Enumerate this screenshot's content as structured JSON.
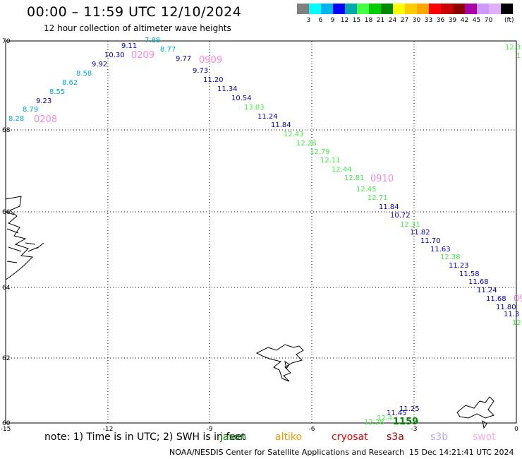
{
  "header": {
    "title": "00:00 – 11:59 UTC 12/10/2024",
    "subtitle": "12 hour collection of altimeter wave heights"
  },
  "legend": {
    "colors": [
      "#808080",
      "#00ffff",
      "#00b4f0",
      "#0000ff",
      "#00aaaa",
      "#44ff44",
      "#00cc00",
      "#008800",
      "#ffff00",
      "#ffcc00",
      "#ffa500",
      "#ff0000",
      "#cc0000",
      "#8b0000",
      "#aa00aa",
      "#cc99ff",
      "#e0b0ff",
      "#000000"
    ],
    "labels": [
      "3",
      "6",
      "9",
      "12",
      "15",
      "18",
      "21",
      "24",
      "27",
      "30",
      "33",
      "36",
      "39",
      "42",
      "45",
      "70"
    ],
    "unit": "(ft)"
  },
  "axes": {
    "lat_labels": [
      "70",
      "68",
      "66",
      "64",
      "62",
      "60"
    ],
    "lon_labels": [
      "-15",
      "-12",
      "-9",
      "-6",
      "-3",
      "0"
    ]
  },
  "passes": [
    {
      "time": "0208",
      "color": "#ff88dd"
    },
    {
      "time": "0209",
      "color": "#ff88dd"
    },
    {
      "time": "0909",
      "color": "#ff88dd"
    },
    {
      "time": "0910",
      "color": "#ff88dd"
    },
    {
      "time": "1159",
      "color": "#008800"
    },
    {
      "time": "09",
      "color": "#ff88dd"
    }
  ],
  "readings": [
    {
      "v": "8.28",
      "c": "#00aadd"
    },
    {
      "v": "8.79",
      "c": "#00aadd"
    },
    {
      "v": "9.23",
      "c": "#0000cc"
    },
    {
      "v": "8.55",
      "c": "#00aadd"
    },
    {
      "v": "8.62",
      "c": "#00aadd"
    },
    {
      "v": "8.58",
      "c": "#00aadd"
    },
    {
      "v": "9.92",
      "c": "#0000cc"
    },
    {
      "v": "10.30",
      "c": "#0000cc"
    },
    {
      "v": "9.11",
      "c": "#0000cc"
    },
    {
      "v": "7.88",
      "c": "#00aadd"
    },
    {
      "v": "8.77",
      "c": "#00aadd"
    },
    {
      "v": "9.77",
      "c": "#0000cc"
    },
    {
      "v": "9.73",
      "c": "#0000cc"
    },
    {
      "v": "11.20",
      "c": "#0000cc"
    },
    {
      "v": "11.34",
      "c": "#0000cc"
    },
    {
      "v": "10.54",
      "c": "#0000cc"
    },
    {
      "v": "13.03",
      "c": "#44ee44"
    },
    {
      "v": "11.24",
      "c": "#0000cc"
    },
    {
      "v": "11.84",
      "c": "#0000cc"
    },
    {
      "v": "12.43",
      "c": "#44ee44"
    },
    {
      "v": "12.28",
      "c": "#44ee44"
    },
    {
      "v": "12.79",
      "c": "#44ee44"
    },
    {
      "v": "12.11",
      "c": "#44ee44"
    },
    {
      "v": "12.44",
      "c": "#44ee44"
    },
    {
      "v": "12.81",
      "c": "#44ee44"
    },
    {
      "v": "12.45",
      "c": "#44ee44"
    },
    {
      "v": "12.71",
      "c": "#44ee44"
    },
    {
      "v": "11.84",
      "c": "#0000cc"
    },
    {
      "v": "10.72",
      "c": "#0000cc"
    },
    {
      "v": "12.31",
      "c": "#44ee44"
    },
    {
      "v": "11.82",
      "c": "#0000cc"
    },
    {
      "v": "11.70",
      "c": "#0000cc"
    },
    {
      "v": "11.63",
      "c": "#0000cc"
    },
    {
      "v": "12.38",
      "c": "#44ee44"
    },
    {
      "v": "11.23",
      "c": "#0000cc"
    },
    {
      "v": "11.58",
      "c": "#0000cc"
    },
    {
      "v": "11.68",
      "c": "#0000cc"
    },
    {
      "v": "11.24",
      "c": "#0000cc"
    },
    {
      "v": "11.68",
      "c": "#0000cc"
    },
    {
      "v": "11.80",
      "c": "#0000cc"
    },
    {
      "v": "11.3",
      "c": "#0000cc"
    },
    {
      "v": "12.",
      "c": "#44ee44"
    },
    {
      "v": "12.3",
      "c": "#44ee44"
    },
    {
      "v": "1",
      "c": "#44ee44"
    },
    {
      "v": "12.28",
      "c": "#44ee44"
    },
    {
      "v": "12.4",
      "c": "#44ee44"
    },
    {
      "v": "11.45",
      "c": "#0000cc"
    },
    {
      "v": "11.25",
      "c": "#0000cc"
    }
  ],
  "notes": {
    "prefix": "note: 1) Time is in UTC; 2) SWH is in feet",
    "satellites": [
      {
        "name": "jason",
        "color": "#008800"
      },
      {
        "name": "altiko",
        "color": "#ff9900"
      },
      {
        "name": "cryosat",
        "color": "#ee0000"
      },
      {
        "name": "s3a",
        "color": "#aa0000"
      },
      {
        "name": "s3b",
        "color": "#bbaaff"
      },
      {
        "name": "swot",
        "color": "#ffaadd"
      }
    ]
  },
  "footer": {
    "credit": "NOAA/NESDIS Center for Satellite Applications and Research",
    "timestamp": "15 Dec 14:21:41 UTC 2024"
  }
}
